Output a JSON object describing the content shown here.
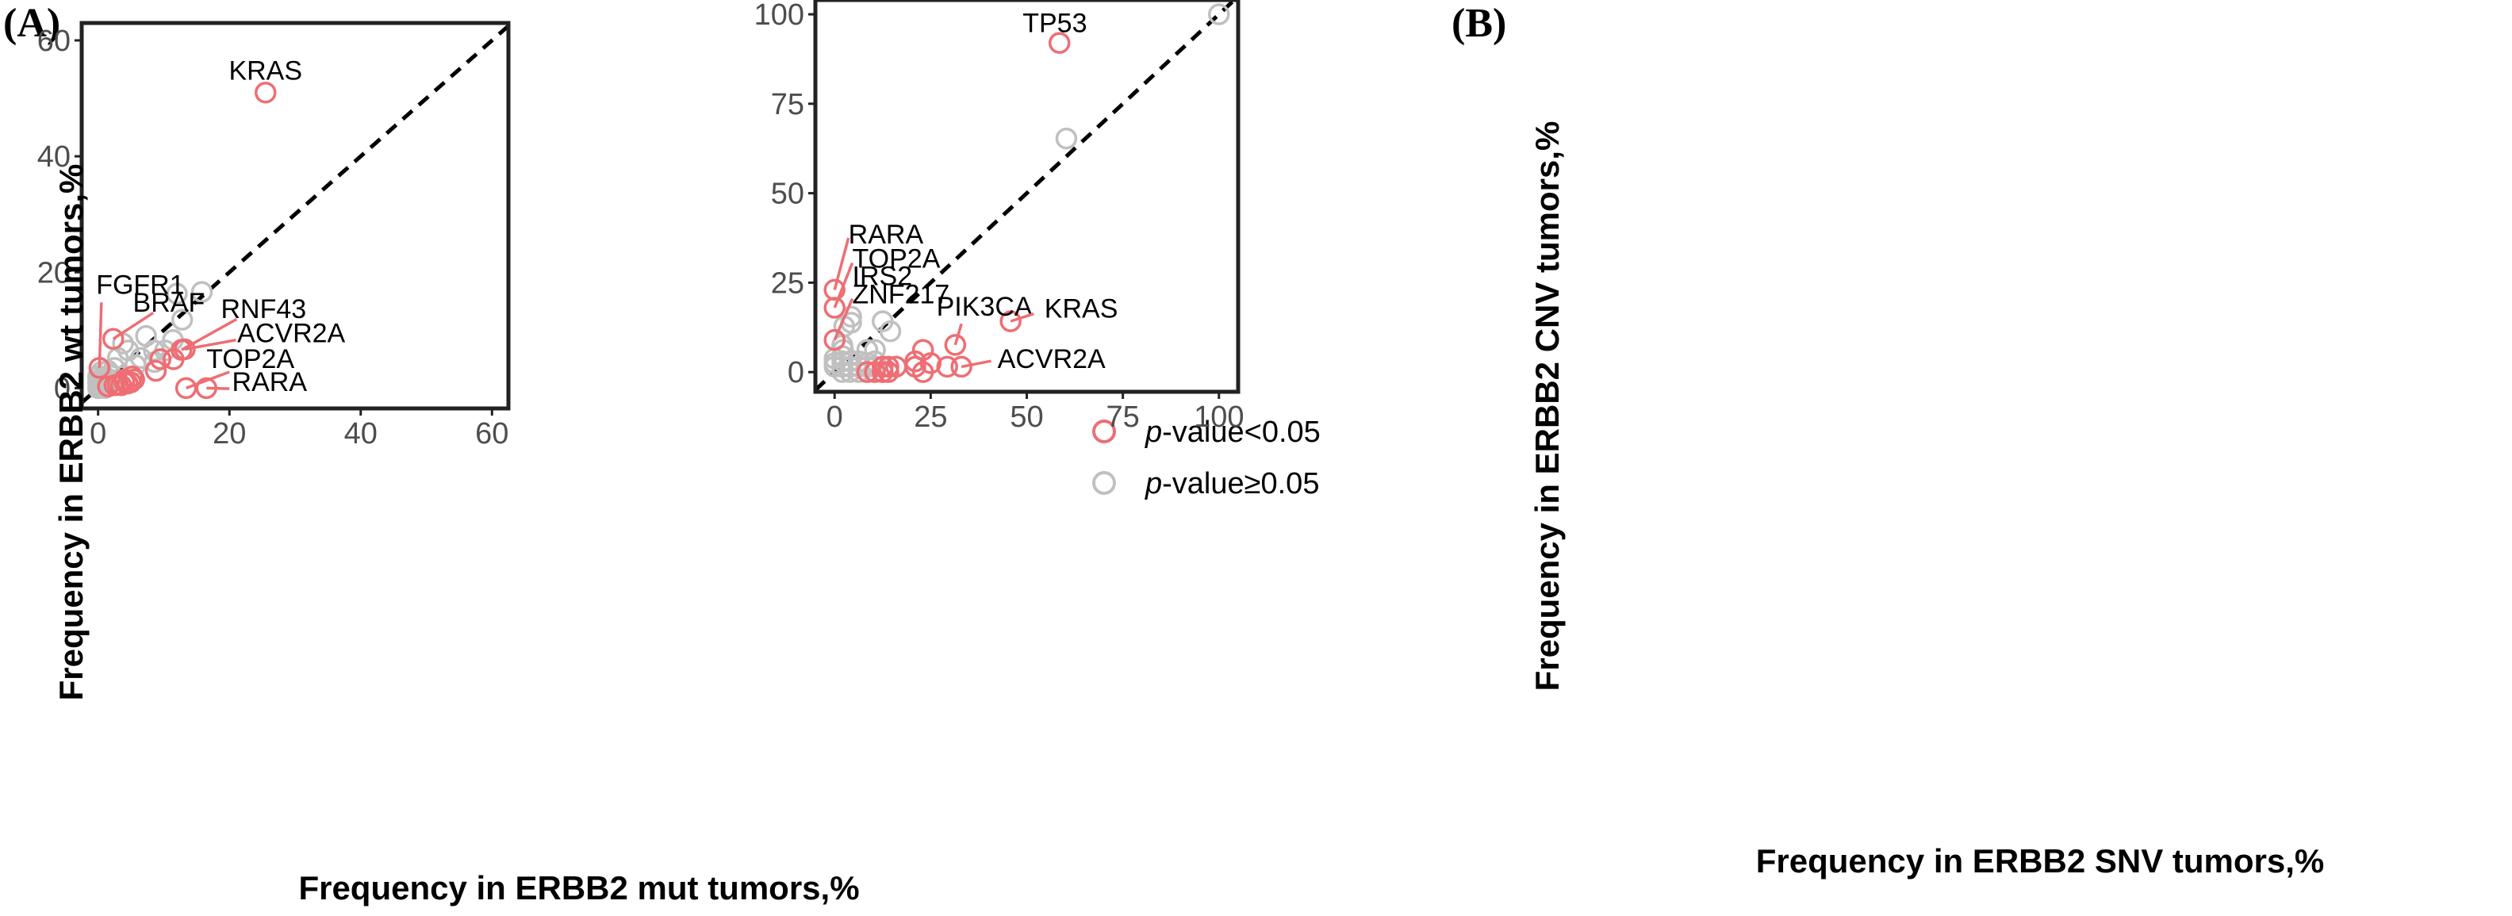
{
  "colors": {
    "significant": "#ee6e73",
    "not_significant": "#c0c0c0",
    "axis": "#222222",
    "tick_text": "#4d4d4d",
    "diagonal": "#000000"
  },
  "legend": {
    "items": [
      {
        "prefix": "p",
        "suffix": "-value<0.05",
        "color_key": "significant"
      },
      {
        "prefix": "p",
        "suffix": "-value≥0.05",
        "color_key": "not_significant"
      }
    ]
  },
  "chart_data": [
    {
      "panel": "(A)",
      "type": "scatter",
      "xlabel": "Frequency in ERBB2 mut tumors,%",
      "ylabel": "Frequency in ERBB2 wt  tumors,%",
      "xlim": [
        -2.5,
        62.5
      ],
      "ylim": [
        -3.5,
        63
      ],
      "xticks": [
        0,
        20,
        40,
        60
      ],
      "yticks": [
        0,
        20,
        40,
        60
      ],
      "diagonal": true,
      "significant_points": [
        {
          "x": 25.5,
          "y": 51.0
        },
        {
          "x": 0.2,
          "y": 3.5
        },
        {
          "x": 2.3,
          "y": 8.5
        },
        {
          "x": 12.7,
          "y": 6.6
        },
        {
          "x": 13.2,
          "y": 6.7
        },
        {
          "x": 13.4,
          "y": 0.0
        },
        {
          "x": 16.5,
          "y": 0.0
        },
        {
          "x": 11.5,
          "y": 5.0
        },
        {
          "x": 9.5,
          "y": 5.0
        },
        {
          "x": 8.8,
          "y": 3.0
        },
        {
          "x": 5.5,
          "y": 1.5
        },
        {
          "x": 5.0,
          "y": 1.0
        },
        {
          "x": 4.0,
          "y": 1.5
        },
        {
          "x": 4.5,
          "y": 0.8
        },
        {
          "x": 3.5,
          "y": 0.5
        },
        {
          "x": 3.0,
          "y": 0.6
        },
        {
          "x": 2.5,
          "y": 0.5
        },
        {
          "x": 5.2,
          "y": 2.0
        },
        {
          "x": 1.5,
          "y": 0.3
        },
        {
          "x": 4.0,
          "y": 1.0
        }
      ],
      "nonsignificant_points": [
        {
          "x": 12.0,
          "y": 16.3
        },
        {
          "x": 15.8,
          "y": 16.6
        },
        {
          "x": 12.8,
          "y": 11.8
        },
        {
          "x": 7.3,
          "y": 9.0
        },
        {
          "x": 3.8,
          "y": 7.7
        },
        {
          "x": 11.4,
          "y": 8.3
        },
        {
          "x": 10.2,
          "y": 6.5
        },
        {
          "x": 8.5,
          "y": 6.5
        },
        {
          "x": 4.6,
          "y": 6.5
        },
        {
          "x": 3.0,
          "y": 5.2
        },
        {
          "x": 6.5,
          "y": 5.2
        },
        {
          "x": 5.7,
          "y": 4.0
        },
        {
          "x": 8.6,
          "y": 4.5
        },
        {
          "x": 2.5,
          "y": 3.5
        },
        {
          "x": 1.5,
          "y": 3.0
        },
        {
          "x": 0.5,
          "y": 2.8
        },
        {
          "x": 1.0,
          "y": 2.0
        },
        {
          "x": 2.0,
          "y": 2.2
        },
        {
          "x": 0.0,
          "y": 2.0
        },
        {
          "x": 0.2,
          "y": 1.5
        },
        {
          "x": 0.8,
          "y": 1.2
        },
        {
          "x": 1.3,
          "y": 0.8
        },
        {
          "x": 0.0,
          "y": 1.0
        },
        {
          "x": 0.5,
          "y": 0.5
        },
        {
          "x": 1.0,
          "y": 0.0
        },
        {
          "x": 0.0,
          "y": 0.0
        },
        {
          "x": 0.3,
          "y": 0.3
        },
        {
          "x": 1.8,
          "y": 1.5
        },
        {
          "x": 2.2,
          "y": 1.0
        },
        {
          "x": 0.6,
          "y": 1.8
        }
      ],
      "annotations": [
        {
          "text": "KRAS",
          "x": 25.5,
          "y": 51.0,
          "lx": 25.5,
          "ly": 53.2,
          "anchor": "middle",
          "line": false
        },
        {
          "text": "FGFR1",
          "x": 0.2,
          "y": 3.5,
          "lx": -0.3,
          "ly": 16.3,
          "anchor": "start",
          "line": true,
          "ex": 0.5,
          "ey": 14.8
        },
        {
          "text": "BRAF",
          "x": 2.3,
          "y": 8.5,
          "lx": 5.3,
          "ly": 13.2,
          "anchor": "start",
          "line": true,
          "ex": 8.4,
          "ey": 13.0
        },
        {
          "text": "RNF43",
          "x": 12.7,
          "y": 6.6,
          "lx": 18.7,
          "ly": 12.1,
          "anchor": "start",
          "line": true,
          "ex": 21.1,
          "ey": 11.9
        },
        {
          "text": "ACVR2A",
          "x": 13.2,
          "y": 6.7,
          "lx": 21.2,
          "ly": 7.9,
          "anchor": "start",
          "line": true,
          "ex": 21.0,
          "ey": 8.3
        },
        {
          "text": "TOP2A",
          "x": 13.4,
          "y": 0.0,
          "lx": 16.5,
          "ly": 3.5,
          "anchor": "start",
          "line": true,
          "ex": 20.0,
          "ey": 2.8
        },
        {
          "text": "RARA",
          "x": 16.5,
          "y": 0.0,
          "lx": 20.4,
          "ly": -0.5,
          "anchor": "start",
          "line": true,
          "ex": 20.0,
          "ey": -0.1
        }
      ]
    },
    {
      "panel": "(B)",
      "type": "scatter",
      "xlabel": "Frequency in ERBB2 SNV tumors,%",
      "ylabel": "Frequency in ERBB2 CNV tumors,%",
      "xlim": [
        -5,
        105
      ],
      "ylim": [
        -5.5,
        104
      ],
      "xticks": [
        0,
        25,
        50,
        75,
        100
      ],
      "yticks": [
        0,
        25,
        50,
        75,
        100
      ],
      "diagonal": true,
      "significant_points": [
        {
          "x": 58.5,
          "y": 92.0
        },
        {
          "x": 0.0,
          "y": 23.0
        },
        {
          "x": 0.0,
          "y": 18.0
        },
        {
          "x": 0.0,
          "y": 9.0
        },
        {
          "x": 45.8,
          "y": 14.2
        },
        {
          "x": 31.4,
          "y": 7.6
        },
        {
          "x": 33.0,
          "y": 1.5
        },
        {
          "x": 23.0,
          "y": 6.2
        },
        {
          "x": 25.0,
          "y": 2.5
        },
        {
          "x": 29.3,
          "y": 1.5
        },
        {
          "x": 21.0,
          "y": 3.0
        },
        {
          "x": 21.0,
          "y": 1.5
        },
        {
          "x": 23.0,
          "y": 0.0
        },
        {
          "x": 16.0,
          "y": 1.5
        },
        {
          "x": 14.0,
          "y": 1.5
        },
        {
          "x": 12.5,
          "y": 1.5
        },
        {
          "x": 12.5,
          "y": 0.0
        },
        {
          "x": 14.0,
          "y": 0.0
        },
        {
          "x": 10.5,
          "y": 0.0
        },
        {
          "x": 8.5,
          "y": 0.0
        }
      ],
      "nonsignificant_points": [
        {
          "x": 100.0,
          "y": 100.0
        },
        {
          "x": 60.3,
          "y": 65.3
        },
        {
          "x": 4.3,
          "y": 15.5
        },
        {
          "x": 4.3,
          "y": 13.8
        },
        {
          "x": 12.5,
          "y": 14.2
        },
        {
          "x": 14.5,
          "y": 11.4
        },
        {
          "x": 2.5,
          "y": 12.8
        },
        {
          "x": 2.0,
          "y": 7.5
        },
        {
          "x": 2.2,
          "y": 6.2
        },
        {
          "x": 8.5,
          "y": 6.2
        },
        {
          "x": 10.5,
          "y": 6.2
        },
        {
          "x": 2.0,
          "y": 4.5
        },
        {
          "x": 0.0,
          "y": 3.8
        },
        {
          "x": 0.0,
          "y": 2.5
        },
        {
          "x": 0.0,
          "y": 1.5
        },
        {
          "x": 2.0,
          "y": 3.0
        },
        {
          "x": 4.0,
          "y": 3.0
        },
        {
          "x": 6.3,
          "y": 3.0
        },
        {
          "x": 2.0,
          "y": 1.5
        },
        {
          "x": 4.0,
          "y": 1.5
        },
        {
          "x": 6.3,
          "y": 1.5
        },
        {
          "x": 8.5,
          "y": 1.5
        },
        {
          "x": 10.5,
          "y": 1.5
        },
        {
          "x": 2.0,
          "y": 0.0
        },
        {
          "x": 4.0,
          "y": 0.0
        },
        {
          "x": 6.3,
          "y": 0.0
        },
        {
          "x": 8.5,
          "y": 2.5
        },
        {
          "x": 10.5,
          "y": 3.0
        }
      ],
      "annotations": [
        {
          "text": "TP53",
          "x": 58.5,
          "y": 92.0,
          "lx": 57.3,
          "ly": 95.0,
          "anchor": "middle",
          "line": false
        },
        {
          "text": "RARA",
          "x": 0.0,
          "y": 23.0,
          "lx": 3.6,
          "ly": 36.0,
          "anchor": "start",
          "line": true,
          "ex": 3.6,
          "ey": 37.5
        },
        {
          "text": "TOP2A",
          "x": 0.0,
          "y": 18.0,
          "lx": 4.6,
          "ly": 29.2,
          "anchor": "start",
          "line": true,
          "ex": 4.6,
          "ey": 30.5
        },
        {
          "text": "IRS2",
          "x": 0.0,
          "y": 9.0,
          "lx": 4.6,
          "ly": 24.3,
          "anchor": "start",
          "line": false
        },
        {
          "text": "ZNF217",
          "x": 0.0,
          "y": 9.0,
          "lx": 4.6,
          "ly": 19.2,
          "anchor": "start",
          "line": true,
          "ex": 4.6,
          "ey": 20.5
        },
        {
          "text": "PIK3CA",
          "x": 31.4,
          "y": 7.6,
          "lx": 26.5,
          "ly": 15.8,
          "anchor": "start",
          "line": true,
          "ex": 33.0,
          "ey": 13.5
        },
        {
          "text": "KRAS",
          "x": 45.8,
          "y": 14.2,
          "lx": 54.6,
          "ly": 15.2,
          "anchor": "start",
          "line": true,
          "ex": 51.8,
          "ey": 16.3
        },
        {
          "text": "ACVR2A",
          "x": 33.0,
          "y": 1.5,
          "lx": 42.4,
          "ly": 1.1,
          "anchor": "start",
          "line": true,
          "ex": 40.7,
          "ey": 3.1
        }
      ]
    }
  ]
}
